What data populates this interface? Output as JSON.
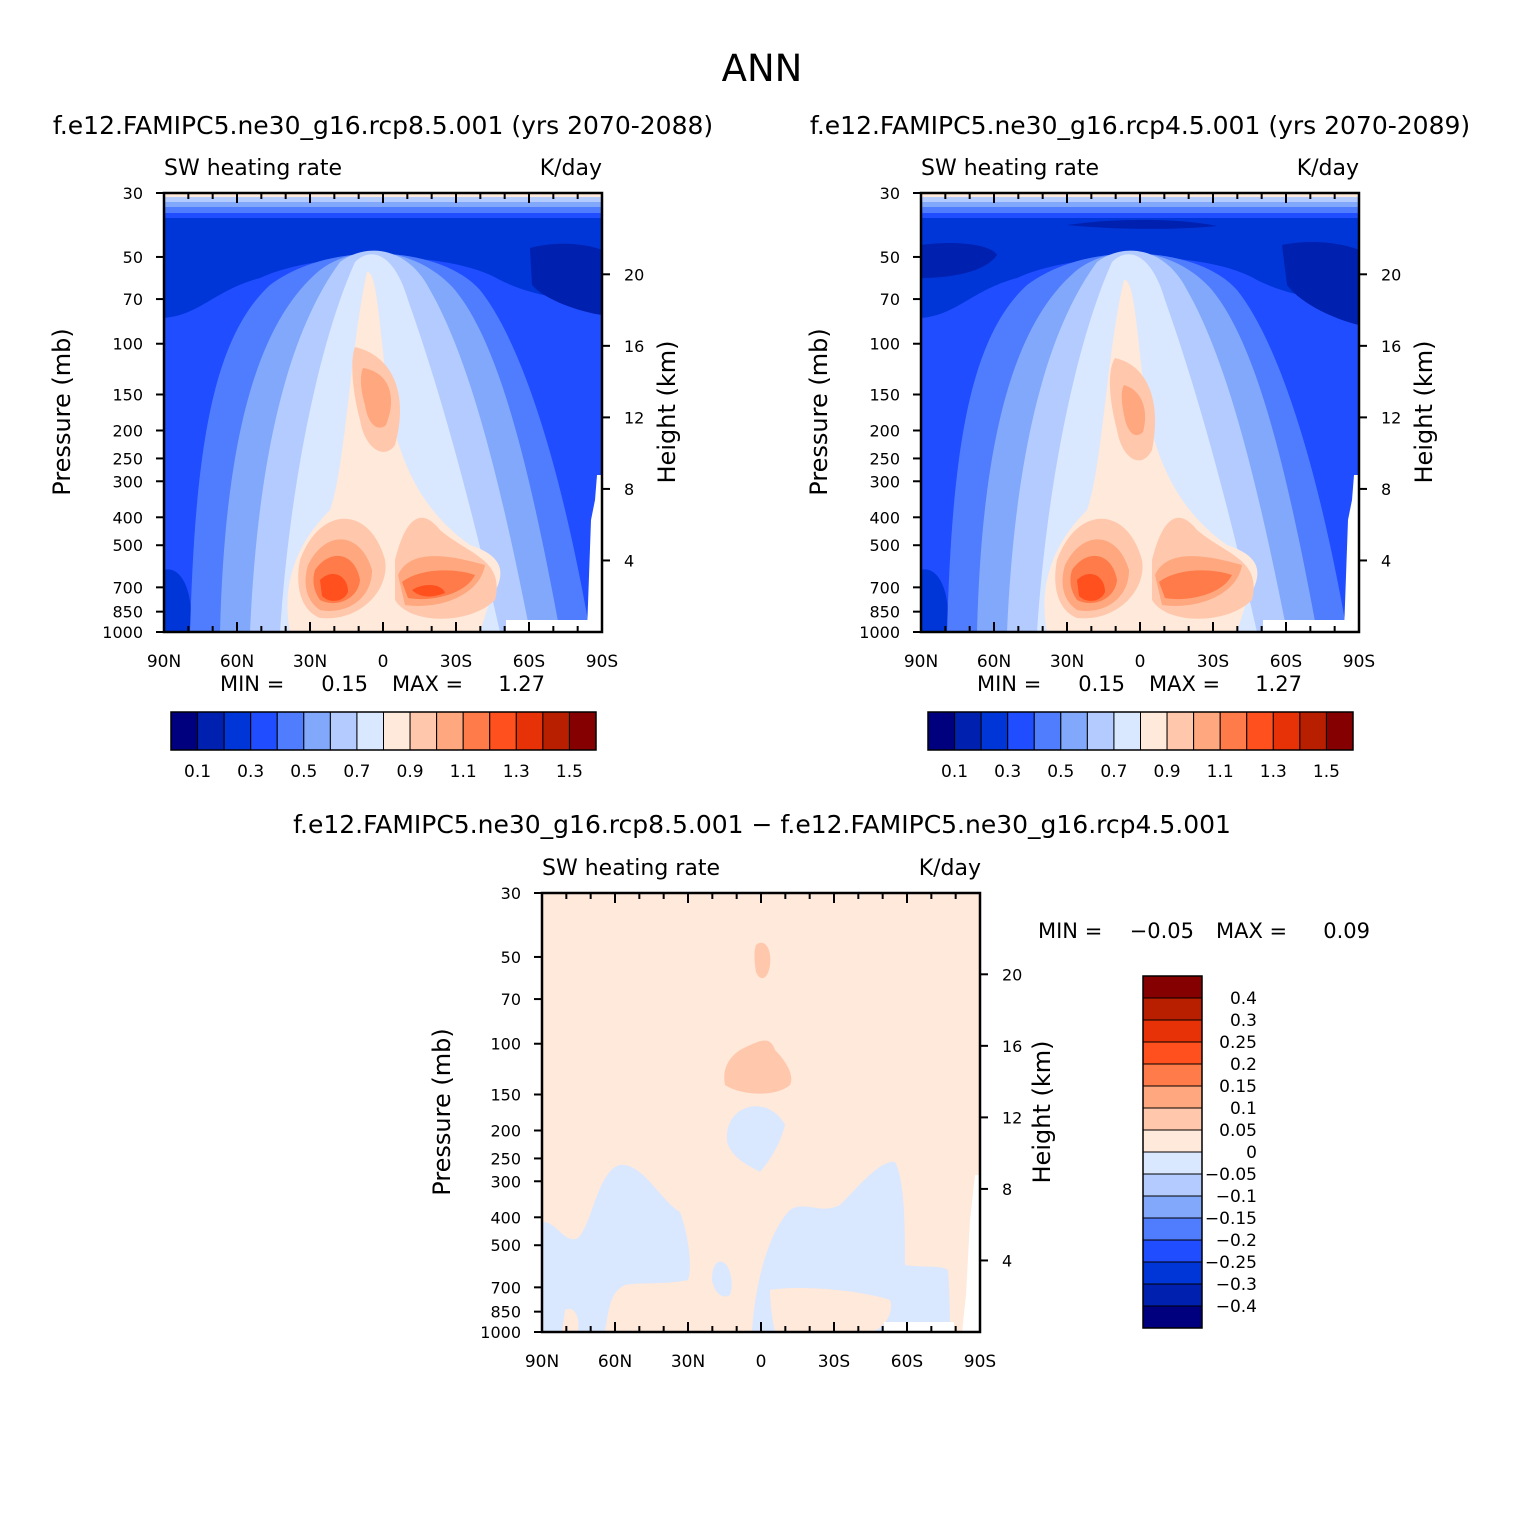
{
  "page_title": "ANN",
  "chart_data": [
    {
      "type": "heatmap",
      "title": "f.e12.FAMIPC5.ne30_g16.rcp8.5.001 (yrs 2070-2088)",
      "left_string": "SW heating rate",
      "right_string": "K/day",
      "xlabel": "",
      "ylabel": "Pressure (mb)",
      "ylabel_right": "Height (km)",
      "x_ticks": [
        "90N",
        "60N",
        "30N",
        "0",
        "30S",
        "60S",
        "90S"
      ],
      "y_ticks": [
        "30",
        "50",
        "70",
        "100",
        "150",
        "200",
        "250",
        "300",
        "400",
        "500",
        "700",
        "850",
        "1000"
      ],
      "height_ticks": [
        "20",
        "16",
        "12",
        "8",
        "4"
      ],
      "min_label": "MIN =",
      "min_value": "0.15",
      "max_label": "MAX =",
      "max_value": "1.27",
      "colorbar": {
        "orientation": "horizontal",
        "colors": [
          "#00007f",
          "#0020b0",
          "#0036d7",
          "#1f4dff",
          "#4f7dfd",
          "#82a8fb",
          "#b3cbff",
          "#d9e8ff",
          "#ffe9da",
          "#ffc8ad",
          "#ffa77e",
          "#ff7b49",
          "#ff501e",
          "#e63206",
          "#b81f00",
          "#850000"
        ],
        "labels": [
          "0.1",
          "0.3",
          "0.5",
          "0.7",
          "0.9",
          "1.1",
          "1.3",
          "1.5"
        ]
      }
    },
    {
      "type": "heatmap",
      "title": "f.e12.FAMIPC5.ne30_g16.rcp4.5.001 (yrs 2070-2089)",
      "left_string": "SW heating rate",
      "right_string": "K/day",
      "xlabel": "",
      "ylabel": "Pressure (mb)",
      "ylabel_right": "Height (km)",
      "x_ticks": [
        "90N",
        "60N",
        "30N",
        "0",
        "30S",
        "60S",
        "90S"
      ],
      "y_ticks": [
        "30",
        "50",
        "70",
        "100",
        "150",
        "200",
        "250",
        "300",
        "400",
        "500",
        "700",
        "850",
        "1000"
      ],
      "height_ticks": [
        "20",
        "16",
        "12",
        "8",
        "4"
      ],
      "min_label": "MIN =",
      "min_value": "0.15",
      "max_label": "MAX =",
      "max_value": "1.27",
      "colorbar": {
        "orientation": "horizontal",
        "colors": [
          "#00007f",
          "#0020b0",
          "#0036d7",
          "#1f4dff",
          "#4f7dfd",
          "#82a8fb",
          "#b3cbff",
          "#d9e8ff",
          "#ffe9da",
          "#ffc8ad",
          "#ffa77e",
          "#ff7b49",
          "#ff501e",
          "#e63206",
          "#b81f00",
          "#850000"
        ],
        "labels": [
          "0.1",
          "0.3",
          "0.5",
          "0.7",
          "0.9",
          "1.1",
          "1.3",
          "1.5"
        ]
      }
    },
    {
      "type": "heatmap",
      "title": "f.e12.FAMIPC5.ne30_g16.rcp8.5.001 − f.e12.FAMIPC5.ne30_g16.rcp4.5.001",
      "left_string": "SW heating rate",
      "right_string": "K/day",
      "xlabel": "",
      "ylabel": "Pressure (mb)",
      "ylabel_right": "Height (km)",
      "x_ticks": [
        "90N",
        "60N",
        "30N",
        "0",
        "30S",
        "60S",
        "90S"
      ],
      "y_ticks": [
        "30",
        "50",
        "70",
        "100",
        "150",
        "200",
        "250",
        "300",
        "400",
        "500",
        "700",
        "850",
        "1000"
      ],
      "height_ticks": [
        "20",
        "16",
        "12",
        "8",
        "4"
      ],
      "min_label": "MIN =",
      "min_value": "−0.05",
      "max_label": "MAX =",
      "max_value": "0.09",
      "colorbar": {
        "orientation": "vertical",
        "colors": [
          "#850000",
          "#b81f00",
          "#e63206",
          "#ff501e",
          "#ff7b49",
          "#ffa77e",
          "#ffc8ad",
          "#ffe9da",
          "#d9e8ff",
          "#b3cbff",
          "#82a8fb",
          "#4f7dfd",
          "#1f4dff",
          "#0036d7",
          "#0020b0",
          "#00007f"
        ],
        "labels": [
          "0.4",
          "0.3",
          "0.25",
          "0.2",
          "0.15",
          "0.1",
          "0.05",
          "0",
          "−0.05",
          "−0.1",
          "−0.15",
          "−0.2",
          "−0.25",
          "−0.3",
          "−0.4"
        ]
      }
    }
  ]
}
